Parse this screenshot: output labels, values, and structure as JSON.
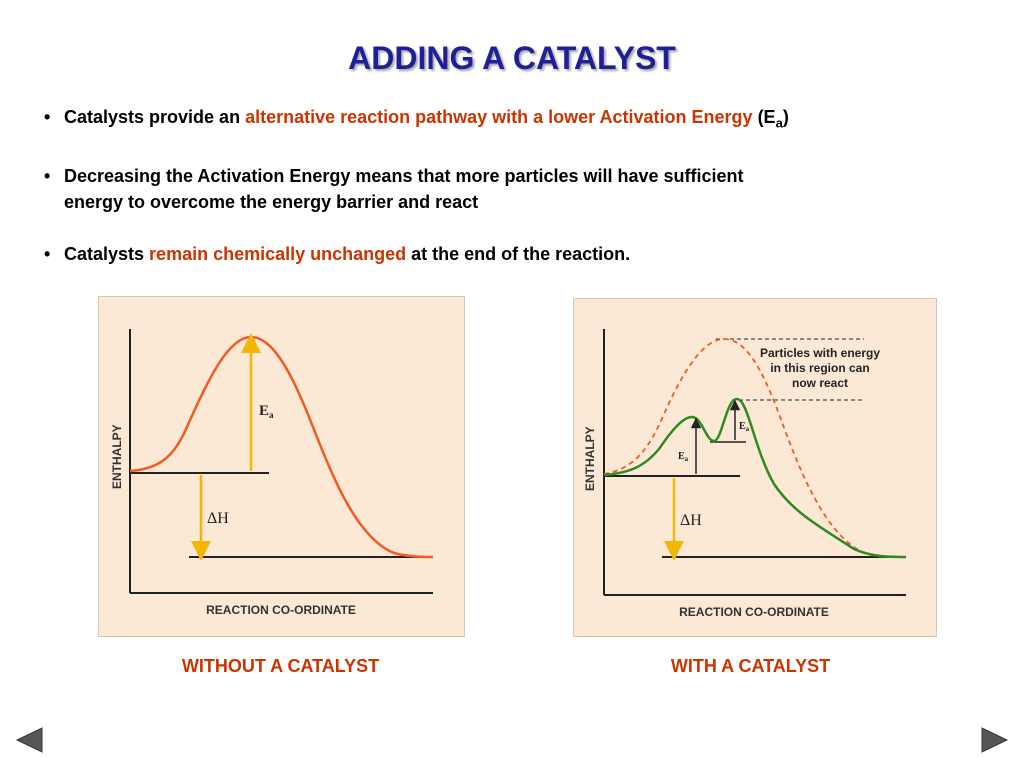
{
  "title": "ADDING A CATALYST",
  "bullets": [
    {
      "pre": "Catalysts provide an ",
      "highlight": "alternative reaction pathway with a lower Activation Energy",
      "post": " (E",
      "sub": "a",
      "end": ")"
    },
    {
      "line1": "Decreasing the Activation Energy means that more particles will have sufficient",
      "line2": "energy to overcome the energy barrier and react"
    },
    {
      "pre": "Catalysts ",
      "highlight": "remain chemically unchanged",
      "post": " at the end of the reaction."
    }
  ],
  "diagram_left": {
    "y_label": "ENTHALPY",
    "x_label": "REACTION CO-ORDINATE",
    "ea_label": "E",
    "ea_sub": "a",
    "dh_label": "ΔH",
    "caption": "WITHOUT A CATALYST"
  },
  "diagram_right": {
    "y_label": "ENTHALPY",
    "x_label": "REACTION CO-ORDINATE",
    "ea_label": "E",
    "ea_sub": "a",
    "dh_label": "ΔH",
    "note_line1": "Particles with energy",
    "note_line2": "in this region can",
    "note_line3": "now react",
    "caption": "WITH A CATALYST"
  },
  "colors": {
    "title": "#1f1f99",
    "highlight": "#cc3300",
    "panel_bg": "#fbe9d6",
    "uncatalysed_curve": "#f05a23",
    "catalysed_curve": "#2e8b1e",
    "arrow_yellow": "#f2b705"
  },
  "nav": {
    "prev_icon": "triangle-left",
    "next_icon": "triangle-right"
  }
}
